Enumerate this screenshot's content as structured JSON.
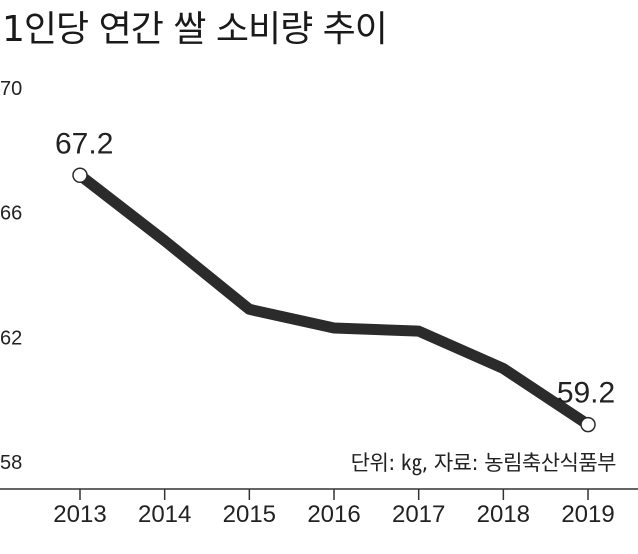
{
  "title": "1인당 연간 쌀 소비량 추이",
  "note": "단위: ㎏, 자료: 농림축산식품부",
  "colors": {
    "line": "#2b2b2b",
    "axis": "#333333",
    "text": "#222222",
    "marker_fill": "#ffffff"
  },
  "chart_data": {
    "type": "line",
    "title": "1인당 연간 쌀 소비량 추이",
    "categories": [
      "2013",
      "2014",
      "2015",
      "2016",
      "2017",
      "2018",
      "2019"
    ],
    "values": [
      67.2,
      65.1,
      62.9,
      62.3,
      62.2,
      61.0,
      59.2
    ],
    "ylim": [
      58,
      70
    ],
    "yticks": [
      "70",
      "66",
      "62",
      "58"
    ],
    "data_labels": [
      {
        "index": 0,
        "text": "67.2"
      },
      {
        "index": 6,
        "text": "59.2"
      }
    ],
    "markers_on": [
      0,
      6
    ],
    "grid": false,
    "legend": "none"
  }
}
